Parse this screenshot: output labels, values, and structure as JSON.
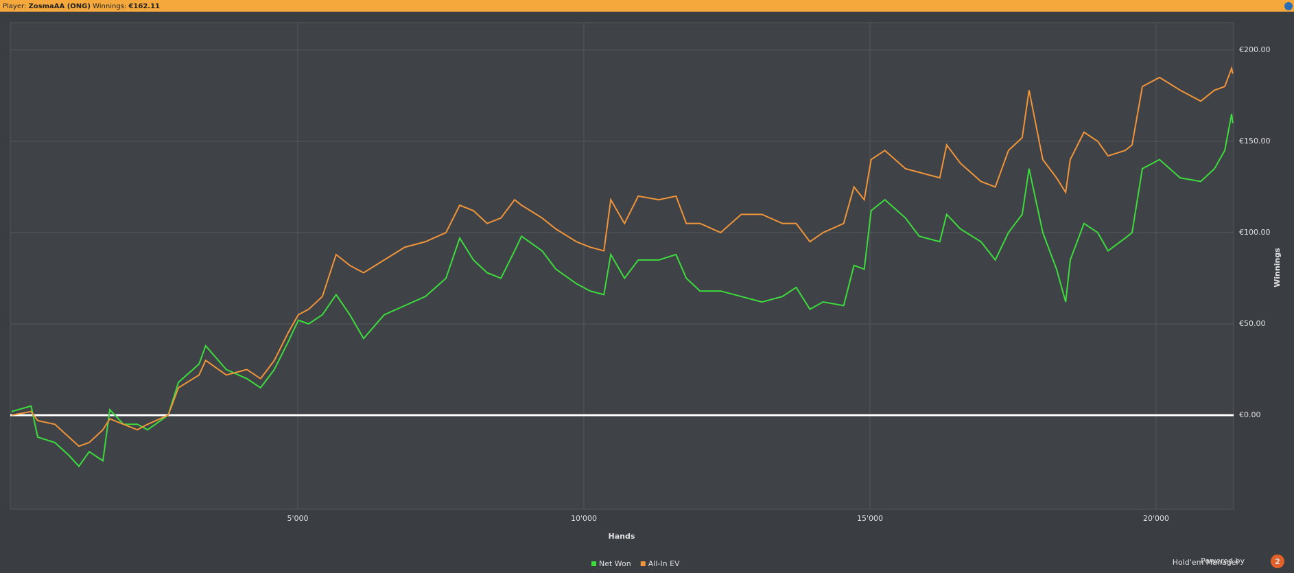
{
  "header": {
    "player_label": "Player:",
    "player": "ZosmaAA (ONG)",
    "winnings_label": "Winnings:",
    "winnings": "€162.11"
  },
  "chart_data": {
    "type": "line",
    "x_label": "Hands",
    "y_label": "Winnings",
    "xlim": [
      0,
      21355
    ],
    "ylim": [
      -51.5,
      215
    ],
    "xticks": [
      {
        "value": 5000,
        "label": "5'000"
      },
      {
        "value": 10000,
        "label": "10'000"
      },
      {
        "value": 15000,
        "label": "15'000"
      },
      {
        "value": 20000,
        "label": "20'000"
      }
    ],
    "yticks": [
      {
        "value": 0,
        "label": "€0.00"
      },
      {
        "value": 50,
        "label": "€50.00"
      },
      {
        "value": 100,
        "label": "€100.00"
      },
      {
        "value": 150,
        "label": "€150.00"
      },
      {
        "value": 200,
        "label": "€200.00"
      }
    ],
    "grid": true,
    "legend": "bottom",
    "x": [
      0,
      340,
      455,
      755,
      1000,
      1175,
      1355,
      1595,
      1715,
      1955,
      2195,
      2375,
      2735,
      2915,
      3275,
      3390,
      3750,
      4110,
      4350,
      4590,
      4830,
      5010,
      5190,
      5430,
      5670,
      5910,
      6150,
      6510,
      6870,
      7230,
      7590,
      7830,
      8070,
      8310,
      8550,
      8790,
      8910,
      9270,
      9510,
      9870,
      10110,
      10350,
      10470,
      10710,
      10950,
      11310,
      11610,
      11790,
      12030,
      12390,
      12750,
      13110,
      13470,
      13710,
      13950,
      14180,
      14540,
      14720,
      14900,
      15020,
      15260,
      15620,
      15860,
      16220,
      16340,
      16580,
      16940,
      17190,
      17420,
      17660,
      17780,
      18020,
      18260,
      18420,
      18500,
      18740,
      18980,
      19160,
      19460,
      19580,
      19760,
      20060,
      20420,
      20780,
      21020,
      21200,
      21320,
      21340
    ],
    "series": [
      {
        "name": "Net Won",
        "color": "#3ddc3d",
        "values": [
          2,
          5,
          -12,
          -15,
          -22,
          -28,
          -20,
          -25,
          3,
          -5,
          -5,
          -8,
          0,
          18,
          28,
          38,
          25,
          20,
          15,
          25,
          40,
          52,
          50,
          55,
          66,
          55,
          42,
          55,
          60,
          65,
          75,
          97,
          85,
          78,
          75,
          90,
          98,
          90,
          80,
          72,
          68,
          66,
          88,
          75,
          85,
          85,
          88,
          75,
          68,
          68,
          65,
          62,
          65,
          70,
          58,
          62,
          60,
          82,
          80,
          112,
          118,
          108,
          98,
          95,
          110,
          102,
          95,
          85,
          100,
          110,
          135,
          100,
          80,
          62,
          85,
          105,
          100,
          90,
          97,
          100,
          135,
          140,
          130,
          128,
          135,
          145,
          165,
          160
        ]
      },
      {
        "name": "All-In EV",
        "color": "#f0953a",
        "values": [
          0,
          2,
          -3,
          -5,
          -12,
          -17,
          -15,
          -8,
          -2,
          -5,
          -8,
          -5,
          0,
          15,
          22,
          30,
          22,
          25,
          20,
          30,
          45,
          55,
          58,
          65,
          88,
          82,
          78,
          85,
          92,
          95,
          100,
          115,
          112,
          105,
          108,
          118,
          115,
          108,
          102,
          95,
          92,
          90,
          118,
          105,
          120,
          118,
          120,
          105,
          105,
          100,
          110,
          110,
          105,
          105,
          95,
          100,
          105,
          125,
          118,
          140,
          145,
          135,
          133,
          130,
          148,
          138,
          128,
          125,
          145,
          152,
          178,
          140,
          130,
          122,
          140,
          155,
          150,
          142,
          145,
          148,
          180,
          185,
          178,
          172,
          178,
          180,
          190,
          187
        ]
      }
    ]
  },
  "branding": {
    "powered": "Powered by",
    "product": "Hold'em Manager",
    "badge": "2"
  }
}
